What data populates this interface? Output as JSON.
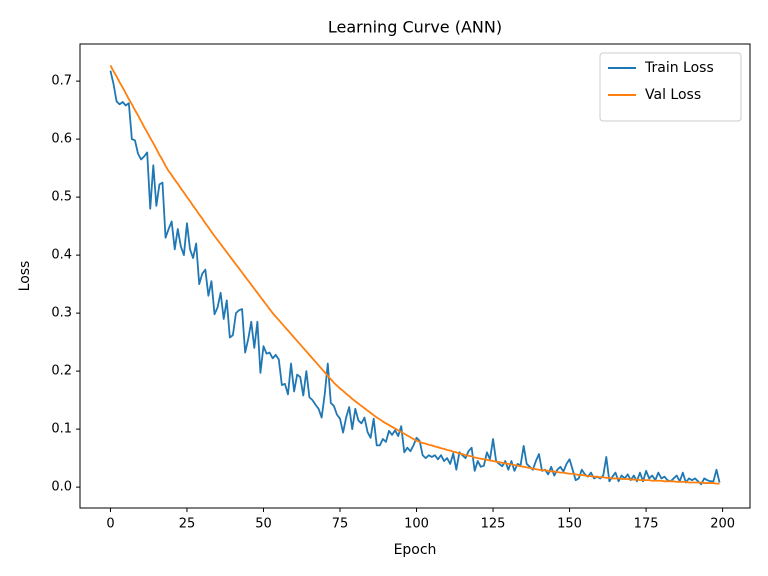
{
  "chart_data": {
    "type": "line",
    "title": "Learning Curve (ANN)",
    "xlabel": "Epoch",
    "ylabel": "Loss",
    "x": [
      0,
      1,
      2,
      3,
      4,
      5,
      6,
      7,
      8,
      9,
      10,
      11,
      12,
      13,
      14,
      15,
      16,
      17,
      18,
      19,
      20,
      21,
      22,
      23,
      24,
      25,
      26,
      27,
      28,
      29,
      30,
      31,
      32,
      33,
      34,
      35,
      36,
      37,
      38,
      39,
      40,
      41,
      42,
      43,
      44,
      45,
      46,
      47,
      48,
      49,
      50,
      51,
      52,
      53,
      54,
      55,
      56,
      57,
      58,
      59,
      60,
      61,
      62,
      63,
      64,
      65,
      66,
      67,
      68,
      69,
      70,
      71,
      72,
      73,
      74,
      75,
      76,
      77,
      78,
      79,
      80,
      81,
      82,
      83,
      84,
      85,
      86,
      87,
      88,
      89,
      90,
      91,
      92,
      93,
      94,
      95,
      96,
      97,
      98,
      99,
      100,
      101,
      102,
      103,
      104,
      105,
      106,
      107,
      108,
      109,
      110,
      111,
      112,
      113,
      114,
      115,
      116,
      117,
      118,
      119,
      120,
      121,
      122,
      123,
      124,
      125,
      126,
      127,
      128,
      129,
      130,
      131,
      132,
      133,
      134,
      135,
      136,
      137,
      138,
      139,
      140,
      141,
      142,
      143,
      144,
      145,
      146,
      147,
      148,
      149,
      150,
      151,
      152,
      153,
      154,
      155,
      156,
      157,
      158,
      159,
      160,
      161,
      162,
      163,
      164,
      165,
      166,
      167,
      168,
      169,
      170,
      171,
      172,
      173,
      174,
      175,
      176,
      177,
      178,
      179,
      180,
      181,
      182,
      183,
      184,
      185,
      186,
      187,
      188,
      189,
      190,
      191,
      192,
      193,
      194,
      195,
      196,
      197,
      198,
      199
    ],
    "series": [
      {
        "name": "Train Loss",
        "color": "#1f77b4",
        "values": [
          0.718,
          0.695,
          0.665,
          0.66,
          0.664,
          0.658,
          0.662,
          0.6,
          0.598,
          0.575,
          0.565,
          0.57,
          0.577,
          0.48,
          0.555,
          0.485,
          0.522,
          0.525,
          0.43,
          0.445,
          0.458,
          0.41,
          0.445,
          0.415,
          0.4,
          0.455,
          0.41,
          0.395,
          0.42,
          0.35,
          0.368,
          0.375,
          0.33,
          0.355,
          0.298,
          0.31,
          0.335,
          0.29,
          0.322,
          0.258,
          0.262,
          0.3,
          0.305,
          0.307,
          0.232,
          0.255,
          0.285,
          0.24,
          0.285,
          0.197,
          0.243,
          0.23,
          0.232,
          0.222,
          0.228,
          0.22,
          0.176,
          0.178,
          0.16,
          0.213,
          0.165,
          0.194,
          0.19,
          0.158,
          0.2,
          0.155,
          0.15,
          0.142,
          0.135,
          0.12,
          0.16,
          0.213,
          0.145,
          0.14,
          0.125,
          0.118,
          0.094,
          0.12,
          0.138,
          0.1,
          0.135,
          0.115,
          0.11,
          0.12,
          0.095,
          0.085,
          0.118,
          0.072,
          0.072,
          0.083,
          0.078,
          0.097,
          0.09,
          0.098,
          0.088,
          0.105,
          0.06,
          0.068,
          0.062,
          0.072,
          0.085,
          0.08,
          0.055,
          0.05,
          0.055,
          0.052,
          0.055,
          0.048,
          0.055,
          0.045,
          0.05,
          0.04,
          0.058,
          0.03,
          0.06,
          0.055,
          0.05,
          0.062,
          0.068,
          0.028,
          0.045,
          0.035,
          0.037,
          0.06,
          0.048,
          0.083,
          0.045,
          0.04,
          0.036,
          0.045,
          0.03,
          0.045,
          0.028,
          0.04,
          0.038,
          0.071,
          0.04,
          0.035,
          0.03,
          0.045,
          0.057,
          0.028,
          0.03,
          0.022,
          0.035,
          0.02,
          0.03,
          0.035,
          0.027,
          0.04,
          0.048,
          0.03,
          0.012,
          0.015,
          0.03,
          0.022,
          0.018,
          0.025,
          0.015,
          0.018,
          0.015,
          0.02,
          0.052,
          0.01,
          0.018,
          0.025,
          0.01,
          0.02,
          0.015,
          0.022,
          0.012,
          0.02,
          0.01,
          0.025,
          0.01,
          0.028,
          0.015,
          0.02,
          0.012,
          0.025,
          0.015,
          0.018,
          0.012,
          0.01,
          0.015,
          0.02,
          0.01,
          0.025,
          0.008,
          0.015,
          0.012,
          0.015,
          0.01,
          0.005,
          0.015,
          0.012,
          0.01,
          0.01,
          0.03,
          0.008
        ]
      },
      {
        "name": "Val Loss",
        "color": "#ff7f0e",
        "values": [
          0.727,
          0.717,
          0.708,
          0.698,
          0.689,
          0.679,
          0.669,
          0.66,
          0.65,
          0.641,
          0.631,
          0.621,
          0.612,
          0.602,
          0.593,
          0.583,
          0.573,
          0.564,
          0.554,
          0.545,
          0.538,
          0.53,
          0.523,
          0.515,
          0.508,
          0.5,
          0.493,
          0.485,
          0.478,
          0.47,
          0.463,
          0.455,
          0.448,
          0.44,
          0.433,
          0.426,
          0.419,
          0.412,
          0.405,
          0.398,
          0.391,
          0.384,
          0.377,
          0.37,
          0.363,
          0.356,
          0.349,
          0.342,
          0.335,
          0.328,
          0.321,
          0.314,
          0.307,
          0.3,
          0.294,
          0.288,
          0.282,
          0.276,
          0.27,
          0.264,
          0.258,
          0.252,
          0.246,
          0.24,
          0.234,
          0.228,
          0.222,
          0.216,
          0.21,
          0.204,
          0.198,
          0.192,
          0.186,
          0.18,
          0.175,
          0.17,
          0.166,
          0.161,
          0.157,
          0.152,
          0.148,
          0.144,
          0.14,
          0.136,
          0.132,
          0.128,
          0.124,
          0.12,
          0.117,
          0.113,
          0.11,
          0.107,
          0.104,
          0.101,
          0.098,
          0.095,
          0.092,
          0.089,
          0.086,
          0.083,
          0.08,
          0.078,
          0.076,
          0.075,
          0.073,
          0.072,
          0.07,
          0.069,
          0.067,
          0.066,
          0.064,
          0.063,
          0.061,
          0.06,
          0.058,
          0.057,
          0.055,
          0.054,
          0.053,
          0.051,
          0.05,
          0.049,
          0.048,
          0.047,
          0.046,
          0.045,
          0.044,
          0.043,
          0.042,
          0.041,
          0.04,
          0.039,
          0.038,
          0.037,
          0.036,
          0.035,
          0.034,
          0.033,
          0.032,
          0.031,
          0.03,
          0.029,
          0.029,
          0.028,
          0.027,
          0.027,
          0.026,
          0.025,
          0.025,
          0.024,
          0.023,
          0.023,
          0.022,
          0.021,
          0.021,
          0.02,
          0.019,
          0.019,
          0.018,
          0.018,
          0.017,
          0.017,
          0.016,
          0.016,
          0.015,
          0.015,
          0.015,
          0.014,
          0.014,
          0.014,
          0.013,
          0.013,
          0.013,
          0.012,
          0.012,
          0.012,
          0.012,
          0.011,
          0.011,
          0.011,
          0.011,
          0.01,
          0.01,
          0.01,
          0.01,
          0.009,
          0.009,
          0.009,
          0.009,
          0.008,
          0.008,
          0.008,
          0.008,
          0.008,
          0.007,
          0.007,
          0.007,
          0.007,
          0.006,
          0.006
        ]
      }
    ],
    "xlim": [
      -9.95,
      208.95
    ],
    "ylim": [
      -0.036,
      0.764
    ],
    "xticks": [
      0,
      25,
      50,
      75,
      100,
      125,
      150,
      175,
      200
    ],
    "yticks": [
      {
        "value": 0,
        "label": "0.0"
      },
      0.1,
      0.2,
      0.3,
      0.4,
      0.5,
      0.6,
      0.7
    ],
    "grid": false,
    "legend": "upper right"
  }
}
